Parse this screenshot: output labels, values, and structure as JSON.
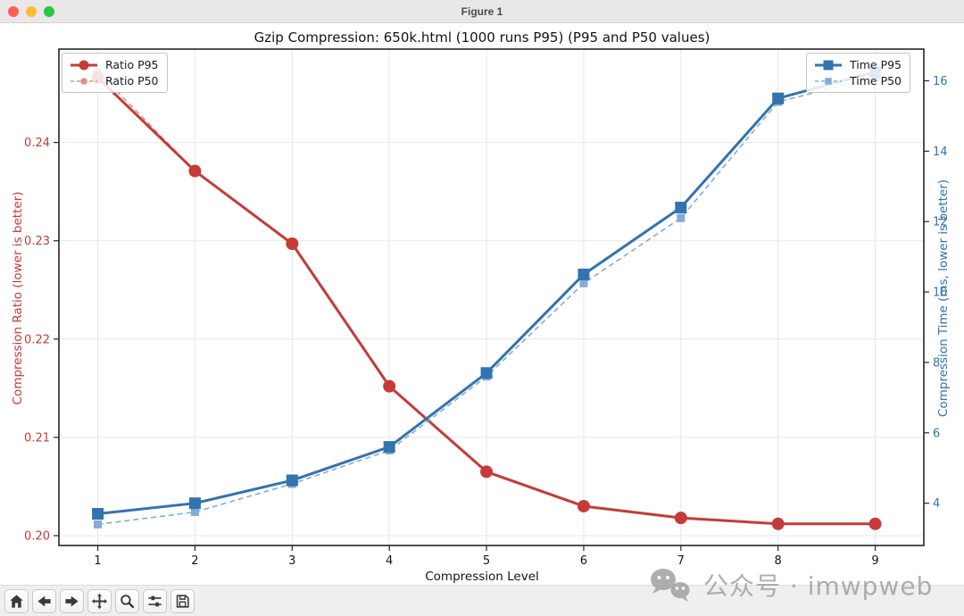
{
  "window": {
    "title": "Figure 1",
    "traffic_lights": [
      "#ff5f57",
      "#febc2e",
      "#28c840"
    ]
  },
  "chart_data": {
    "type": "line",
    "title": "Gzip Compression: 650k.html (1000 runs P95) (P95 and P50 values)",
    "xlabel": "Compression Level",
    "ylabel_left": "Compression Ratio (lower is better)",
    "ylabel_right": "Compression Time (ms, lower is better)",
    "x": [
      1,
      2,
      3,
      4,
      5,
      6,
      7,
      8,
      9
    ],
    "xlim": [
      0.6,
      9.5
    ],
    "ylim_left": [
      0.199,
      0.2495
    ],
    "ylim_right": [
      2.8,
      16.9
    ],
    "yticks_left": [
      0.2,
      0.21,
      0.22,
      0.23,
      0.24
    ],
    "yticks_right": [
      4,
      6,
      8,
      10,
      12,
      14,
      16
    ],
    "grid": true,
    "legend_positions": {
      "ratio": "upper left",
      "time": "upper right"
    },
    "series": [
      {
        "name": "Ratio P95",
        "axis": "left",
        "line": "solid",
        "marker": "circle",
        "color": "#c43b38",
        "values": [
          0.2466,
          0.2371,
          0.2297,
          0.2152,
          0.2065,
          0.203,
          0.2018,
          0.2012,
          0.2012
        ]
      },
      {
        "name": "Ratio P50",
        "axis": "left",
        "line": "dashed",
        "marker": "circle",
        "color": "#dd8f8d",
        "values": [
          0.2472,
          0.2371,
          0.2297,
          0.2152,
          0.2065,
          0.203,
          0.2018,
          0.2012,
          0.2012
        ]
      },
      {
        "name": "Time P95",
        "axis": "right",
        "line": "solid",
        "marker": "square",
        "color": "#3273b0",
        "values": [
          3.7,
          4.0,
          4.65,
          5.6,
          7.7,
          10.5,
          12.4,
          15.5,
          16.25
        ]
      },
      {
        "name": "Time P50",
        "axis": "right",
        "line": "dashed",
        "marker": "square",
        "color": "#85abd4",
        "values": [
          3.4,
          3.75,
          4.55,
          5.5,
          7.6,
          10.25,
          12.1,
          15.4,
          16.1
        ]
      }
    ]
  },
  "toolbar": {
    "buttons": [
      "home",
      "back",
      "forward",
      "pan",
      "zoom",
      "configure-subplots",
      "save"
    ]
  },
  "watermark": {
    "text": "公众号 · imwpweb"
  }
}
